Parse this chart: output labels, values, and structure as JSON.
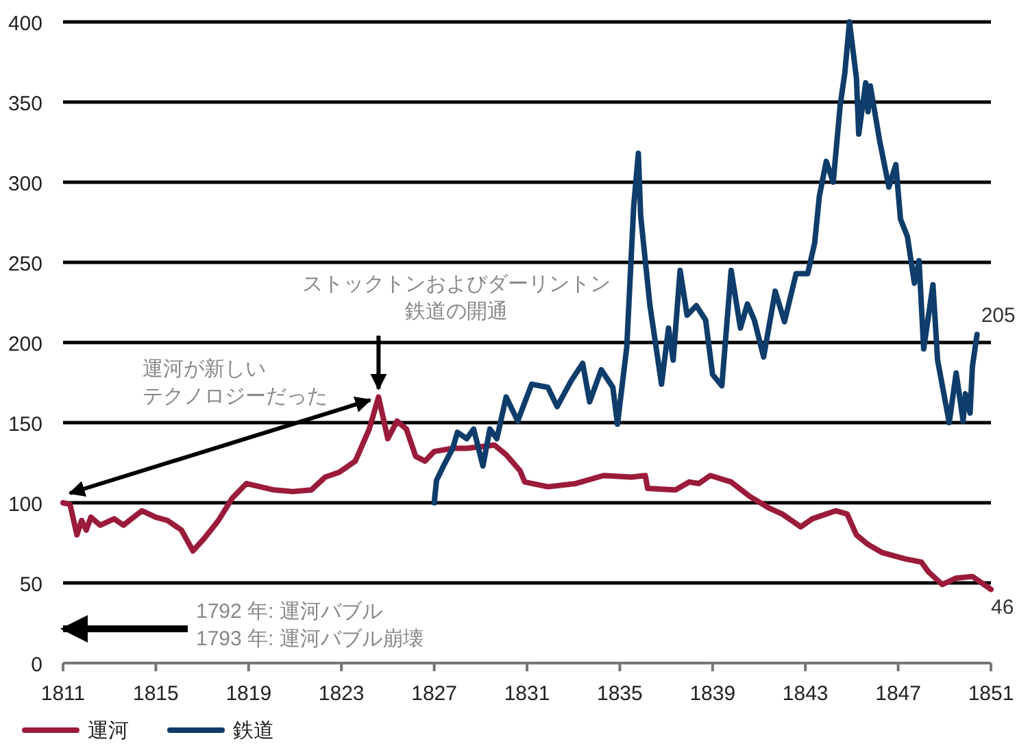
{
  "chart_data": {
    "type": "line",
    "xlim": [
      1811,
      1851
    ],
    "xticks": [
      1811,
      1815,
      1819,
      1823,
      1827,
      1831,
      1835,
      1839,
      1843,
      1847,
      1851
    ],
    "ylim": [
      0,
      400
    ],
    "yticks": [
      0,
      50,
      100,
      150,
      200,
      250,
      300,
      350,
      400
    ],
    "grid": "y",
    "legend": "bottom",
    "series": [
      {
        "name": "運河",
        "color": "#9b1b3a",
        "x": [
          1811.0,
          1811.3,
          1811.6,
          1811.8,
          1812.0,
          1812.2,
          1812.6,
          1813.2,
          1813.6,
          1814.4,
          1815.0,
          1815.5,
          1816.1,
          1816.6,
          1817.1,
          1817.7,
          1818.3,
          1818.9,
          1819.5,
          1820.1,
          1820.9,
          1821.7,
          1822.3,
          1822.9,
          1823.6,
          1824.2,
          1824.6,
          1825.0,
          1825.4,
          1825.8,
          1826.2,
          1826.6,
          1827.0,
          1827.8,
          1828.4,
          1829.6,
          1830.1,
          1830.7,
          1830.9,
          1831.9,
          1833.1,
          1834.3,
          1835.5,
          1836.1,
          1836.2,
          1837.4,
          1838.0,
          1838.4,
          1838.9,
          1839.8,
          1840.6,
          1841.4,
          1842.0,
          1842.8,
          1843.3,
          1844.3,
          1844.8,
          1845.2,
          1845.7,
          1846.3,
          1847.3,
          1848.0,
          1848.3,
          1848.9,
          1849.5,
          1850.2,
          1850.8,
          1851.0
        ],
        "values": [
          100,
          99,
          80,
          89,
          83,
          91,
          86,
          90,
          86,
          95,
          91,
          89,
          83,
          70,
          78,
          89,
          103,
          112,
          110,
          108,
          107,
          108,
          116,
          119,
          126,
          146,
          166,
          140,
          151,
          146,
          129,
          126,
          132,
          134,
          134,
          136,
          130,
          120,
          113,
          110,
          112,
          117,
          116,
          117,
          109,
          108,
          113,
          112,
          117,
          113,
          104,
          97,
          93,
          85,
          90,
          95,
          93,
          80,
          74,
          69,
          65,
          63,
          57,
          49,
          53,
          54,
          48,
          46
        ]
      },
      {
        "name": "鉄道",
        "color": "#0f3d6b",
        "x": [
          1827.0,
          1827.1,
          1827.4,
          1827.8,
          1828.0,
          1828.4,
          1828.7,
          1829.1,
          1829.4,
          1829.7,
          1830.1,
          1830.6,
          1831.2,
          1831.9,
          1832.3,
          1832.9,
          1833.4,
          1833.7,
          1834.2,
          1834.7,
          1834.9,
          1835.3,
          1835.6,
          1835.8,
          1835.9,
          1836.3,
          1836.8,
          1837.1,
          1837.3,
          1837.6,
          1837.9,
          1838.3,
          1838.7,
          1839.0,
          1839.4,
          1839.8,
          1840.2,
          1840.5,
          1840.8,
          1841.2,
          1841.7,
          1842.1,
          1842.6,
          1843.1,
          1843.4,
          1843.6,
          1843.9,
          1844.2,
          1844.5,
          1844.7,
          1844.9,
          1845.2,
          1845.3,
          1845.6,
          1845.7,
          1845.8,
          1846.2,
          1846.6,
          1846.9,
          1847.1,
          1847.4,
          1847.7,
          1847.9,
          1848.1,
          1848.5,
          1848.7,
          1849.2,
          1849.5,
          1849.8,
          1849.9,
          1850.1,
          1850.2,
          1850.4
        ],
        "values": [
          100,
          114,
          123,
          134,
          144,
          140,
          146,
          123,
          146,
          140,
          166,
          151,
          174,
          172,
          160,
          176,
          187,
          163,
          183,
          172,
          149,
          197,
          285,
          318,
          279,
          223,
          174,
          209,
          189,
          245,
          217,
          223,
          214,
          180,
          173,
          245,
          209,
          224,
          214,
          191,
          232,
          213,
          243,
          243,
          262,
          291,
          313,
          300,
          348,
          368,
          400,
          365,
          330,
          362,
          344,
          360,
          326,
          297,
          311,
          277,
          266,
          237,
          251,
          196,
          236,
          189,
          150,
          181,
          151,
          168,
          156,
          185,
          205
        ]
      }
    ],
    "annotations": [
      {
        "text": "ストックトンおよびダーリントン鉄道の開通",
        "x": 1824.6,
        "y": 166
      },
      "運河が新しいテクノロジーだった",
      "1792 年: 運河バブル\n1793 年: 運河バブル崩壊",
      {
        "text": "205",
        "x": 1850.4,
        "y": 205
      },
      {
        "text": "46",
        "x": 1851.0,
        "y": 46
      }
    ]
  }
}
